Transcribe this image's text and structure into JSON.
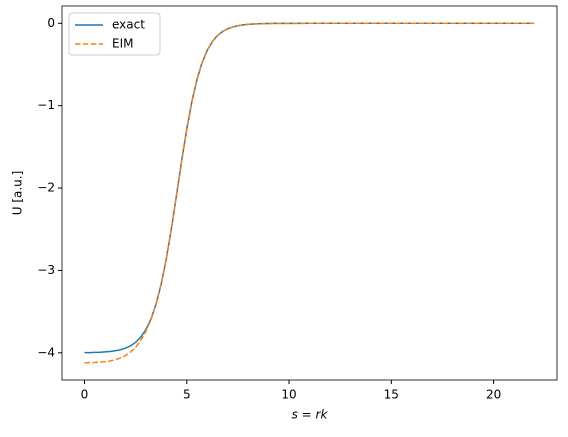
{
  "chart_data": {
    "type": "line",
    "xlabel": "s = rk",
    "ylabel": "U [a.u.]",
    "x": [
      0,
      0.25,
      0.5,
      0.75,
      1,
      1.25,
      1.5,
      1.75,
      2,
      2.25,
      2.5,
      2.75,
      3,
      3.25,
      3.5,
      3.75,
      4,
      4.25,
      4.5,
      4.75,
      5,
      5.25,
      5.5,
      5.75,
      6,
      6.25,
      6.5,
      6.75,
      7,
      7.25,
      7.5,
      7.75,
      8,
      8.25,
      8.5,
      8.75,
      9,
      9.25,
      9.5,
      9.75,
      10,
      11,
      12,
      13,
      14,
      15,
      16,
      17,
      18,
      19,
      20,
      21,
      22
    ],
    "series": [
      {
        "name": "exact",
        "color": "#1f77b4",
        "dash": false,
        "values": [
          -3.998,
          -3.997,
          -3.995,
          -3.993,
          -3.989,
          -3.984,
          -3.975,
          -3.963,
          -3.944,
          -3.915,
          -3.873,
          -3.81,
          -3.719,
          -3.589,
          -3.408,
          -3.166,
          -2.858,
          -2.49,
          -2.083,
          -1.669,
          -1.283,
          -0.95,
          -0.681,
          -0.477,
          -0.328,
          -0.222,
          -0.149,
          -0.0998,
          -0.0663,
          -0.044,
          -0.0291,
          -0.0192,
          -0.0127,
          -0.0084,
          -0.0055,
          -0.0036,
          -0.0024,
          -0.0016,
          -0.0011,
          -0.0007,
          -0.0005,
          -0.0001,
          0,
          0,
          0,
          0,
          0,
          0,
          0,
          0,
          0,
          0,
          0
        ]
      },
      {
        "name": "EIM",
        "color": "#ff7f0e",
        "dash": true,
        "values": [
          -4.12,
          -4.119,
          -4.117,
          -4.114,
          -4.108,
          -4.099,
          -4.085,
          -4.064,
          -4.034,
          -3.991,
          -3.932,
          -3.85,
          -3.74,
          -3.595,
          -3.408,
          -3.166,
          -2.858,
          -2.49,
          -2.083,
          -1.669,
          -1.283,
          -0.95,
          -0.681,
          -0.477,
          -0.328,
          -0.222,
          -0.149,
          -0.0998,
          -0.0663,
          -0.044,
          -0.0291,
          -0.0192,
          -0.0127,
          -0.0084,
          -0.0055,
          -0.0036,
          -0.0024,
          -0.0016,
          -0.0011,
          -0.0007,
          -0.0005,
          -0.0001,
          0,
          0,
          0,
          0,
          0,
          0,
          0,
          0,
          0,
          0,
          0
        ]
      }
    ],
    "xlim": [
      -1.1,
      23.1
    ],
    "xticks": [
      0,
      5,
      10,
      15,
      20
    ],
    "ylim": [
      -4.33,
      0.21
    ],
    "yticks": [
      {
        "value": -4,
        "label": "−4"
      },
      {
        "value": -3,
        "label": "−3"
      },
      {
        "value": -2,
        "label": "−2"
      },
      {
        "value": -1,
        "label": "−1"
      },
      0
    ],
    "legend": "upper left"
  }
}
